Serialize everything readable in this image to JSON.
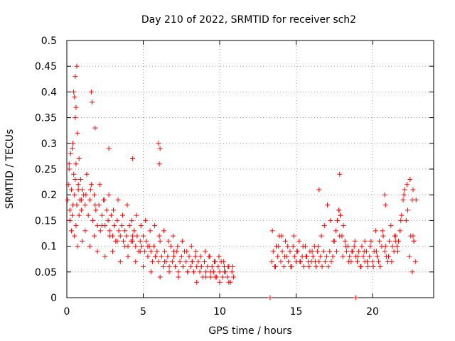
{
  "chart_data": {
    "type": "scatter",
    "title": "Day 210 of 2022, SRMTID for receiver sch2",
    "xlabel": "GPS time / hours",
    "ylabel": "SRMTID / TECUs",
    "xlim": [
      0,
      24
    ],
    "ylim": [
      0,
      0.5
    ],
    "x_ticks": [
      0,
      5,
      10,
      15,
      20
    ],
    "x_tick_labels": [
      "0",
      "5",
      "10",
      "15",
      "20"
    ],
    "y_ticks": [
      0,
      0.05,
      0.1,
      0.15,
      0.2,
      0.25,
      0.3,
      0.35,
      0.4,
      0.45,
      0.5
    ],
    "y_tick_labels": [
      "0",
      "0.05",
      "0.1",
      "0.15",
      "0.2",
      "0.25",
      "0.3",
      "0.35",
      "0.4",
      "0.45",
      "0.5"
    ],
    "grid": true,
    "marker": "plus",
    "color": "#ff0000",
    "series": [
      {
        "name": "SRMTID sch2",
        "x": [
          0.05,
          0.1,
          0.15,
          0.2,
          0.25,
          0.3,
          0.35,
          0.4,
          0.45,
          0.5,
          0.55,
          0.6,
          0.65,
          0.7,
          0.75,
          0.8,
          0.85,
          0.9,
          0.95,
          1.0,
          1.1,
          1.2,
          1.3,
          1.4,
          1.5,
          1.6,
          1.7,
          1.8,
          1.9,
          2.0,
          2.1,
          2.2,
          2.3,
          2.4,
          2.5,
          2.6,
          2.7,
          2.8,
          2.9,
          3.0,
          3.1,
          3.2,
          3.3,
          3.4,
          3.5,
          3.6,
          3.7,
          3.8,
          3.9,
          4.0,
          4.1,
          4.2,
          4.3,
          4.4,
          4.5,
          4.6,
          4.7,
          4.8,
          4.9,
          5.0,
          5.1,
          5.2,
          5.3,
          5.4,
          5.5,
          5.6,
          5.7,
          5.8,
          5.9,
          6.0,
          6.1,
          6.2,
          6.3,
          6.4,
          6.5,
          6.6,
          6.7,
          6.8,
          6.9,
          7.0,
          7.1,
          7.2,
          7.3,
          7.4,
          7.5,
          7.6,
          7.7,
          7.8,
          7.9,
          8.0,
          8.1,
          8.2,
          8.3,
          8.4,
          8.5,
          8.6,
          8.7,
          8.8,
          8.9,
          9.0,
          9.1,
          9.2,
          9.3,
          9.4,
          9.5,
          9.6,
          9.7,
          9.8,
          9.9,
          10.0,
          10.1,
          10.2,
          10.3,
          10.4,
          10.5,
          10.6,
          10.7,
          10.8,
          10.9,
          0.2,
          0.3,
          0.4,
          0.5,
          0.6,
          0.7,
          0.8,
          1.0,
          1.2,
          1.5,
          1.8,
          2.0,
          2.3,
          2.5,
          2.8,
          3.0,
          3.3,
          3.5,
          3.8,
          4.0,
          4.3,
          4.5,
          4.8,
          5.0,
          5.3,
          5.5,
          5.8,
          6.1,
          6.4,
          6.7,
          7.0,
          7.3,
          7.6,
          7.9,
          8.2,
          8.5,
          8.8,
          9.1,
          9.4,
          9.7,
          10.0,
          10.3,
          10.6,
          0.15,
          0.35,
          0.55,
          0.75,
          0.95,
          1.25,
          1.55,
          1.85,
          2.15,
          2.45,
          2.75,
          3.05,
          3.35,
          3.65,
          3.95,
          4.25,
          4.55,
          4.85,
          5.15,
          5.45,
          5.75,
          6.05,
          6.35,
          6.65,
          6.95,
          7.25,
          7.55,
          7.85,
          8.15,
          8.45,
          8.75,
          9.05,
          9.35,
          9.65,
          9.95,
          10.25,
          10.55,
          10.85,
          0.45,
          0.55,
          0.65,
          0.5,
          0.6,
          1.6,
          1.65,
          6.0,
          6.05,
          6.1,
          1.85,
          2.75,
          4.3,
          13.4,
          13.5,
          13.6,
          13.7,
          13.8,
          13.9,
          14.0,
          14.1,
          14.2,
          14.3,
          14.4,
          14.5,
          14.6,
          14.7,
          14.8,
          14.9,
          15.0,
          15.1,
          15.2,
          15.3,
          15.4,
          15.5,
          15.6,
          15.7,
          15.8,
          15.9,
          16.0,
          16.1,
          16.2,
          16.3,
          16.4,
          16.5,
          16.6,
          16.7,
          16.8,
          16.9,
          17.0,
          17.1,
          17.2,
          17.3,
          17.4,
          17.5,
          17.6,
          17.7,
          17.8,
          17.9,
          18.0,
          18.1,
          18.2,
          18.3,
          18.4,
          18.5,
          18.6,
          18.7,
          18.8,
          18.9,
          19.0,
          19.1,
          19.2,
          19.3,
          19.4,
          19.5,
          19.6,
          19.7,
          19.8,
          19.9,
          20.0,
          20.1,
          20.2,
          20.3,
          20.4,
          20.5,
          20.6,
          20.7,
          20.8,
          20.9,
          21.0,
          21.1,
          21.2,
          21.3,
          21.4,
          21.5,
          21.6,
          21.7,
          21.8,
          21.9,
          22.0,
          22.1,
          22.2,
          22.3,
          22.4,
          22.5,
          22.6,
          22.7,
          22.8,
          13.45,
          13.65,
          13.85,
          14.05,
          14.25,
          14.45,
          14.65,
          14.85,
          15.05,
          15.25,
          15.45,
          15.65,
          15.85,
          16.05,
          16.25,
          16.45,
          16.65,
          16.85,
          17.05,
          17.25,
          17.45,
          17.65,
          17.85,
          18.05,
          18.25,
          18.45,
          18.65,
          18.85,
          19.05,
          19.25,
          19.45,
          19.65,
          19.85,
          20.05,
          20.25,
          20.45,
          20.65,
          20.85,
          21.05,
          21.25,
          21.45,
          21.65,
          21.85,
          22.05,
          22.25,
          22.45,
          22.65,
          22.85,
          17.8,
          17.85,
          17.9,
          20.8,
          20.85,
          22.6,
          22.65,
          22.7,
          16.5,
          19.5,
          21.5,
          13.3,
          18.9
        ],
        "y": [
          0.19,
          0.22,
          0.25,
          0.17,
          0.28,
          0.21,
          0.16,
          0.3,
          0.24,
          0.2,
          0.35,
          0.26,
          0.18,
          0.32,
          0.22,
          0.27,
          0.19,
          0.23,
          0.17,
          0.21,
          0.2,
          0.18,
          0.24,
          0.16,
          0.19,
          0.22,
          0.15,
          0.2,
          0.17,
          0.14,
          0.18,
          0.13,
          0.16,
          0.19,
          0.14,
          0.17,
          0.15,
          0.13,
          0.16,
          0.12,
          0.14,
          0.11,
          0.15,
          0.13,
          0.12,
          0.14,
          0.11,
          0.13,
          0.12,
          0.1,
          0.14,
          0.11,
          0.12,
          0.13,
          0.1,
          0.12,
          0.09,
          0.11,
          0.1,
          0.12,
          0.09,
          0.11,
          0.08,
          0.1,
          0.09,
          0.07,
          0.1,
          0.08,
          0.09,
          0.07,
          0.11,
          0.08,
          0.06,
          0.09,
          0.07,
          0.08,
          0.06,
          0.1,
          0.07,
          0.08,
          0.06,
          0.09,
          0.05,
          0.07,
          0.08,
          0.06,
          0.09,
          0.07,
          0.05,
          0.08,
          0.06,
          0.07,
          0.05,
          0.08,
          0.06,
          0.07,
          0.05,
          0.06,
          0.04,
          0.07,
          0.05,
          0.06,
          0.08,
          0.04,
          0.06,
          0.05,
          0.07,
          0.04,
          0.06,
          0.05,
          0.07,
          0.04,
          0.06,
          0.05,
          0.04,
          0.06,
          0.03,
          0.05,
          0.04,
          0.15,
          0.13,
          0.18,
          0.12,
          0.14,
          0.1,
          0.16,
          0.11,
          0.13,
          0.1,
          0.12,
          0.09,
          0.14,
          0.08,
          0.12,
          0.09,
          0.11,
          0.07,
          0.1,
          0.08,
          0.11,
          0.07,
          0.09,
          0.06,
          0.1,
          0.05,
          0.08,
          0.04,
          0.07,
          0.05,
          0.09,
          0.04,
          0.06,
          0.05,
          0.07,
          0.03,
          0.06,
          0.04,
          0.05,
          0.04,
          0.03,
          0.05,
          0.03,
          0.26,
          0.29,
          0.23,
          0.21,
          0.19,
          0.2,
          0.21,
          0.18,
          0.22,
          0.19,
          0.2,
          0.17,
          0.19,
          0.16,
          0.18,
          0.15,
          0.16,
          0.14,
          0.15,
          0.13,
          0.14,
          0.12,
          0.13,
          0.11,
          0.12,
          0.1,
          0.11,
          0.09,
          0.1,
          0.09,
          0.08,
          0.09,
          0.08,
          0.07,
          0.08,
          0.07,
          0.06,
          0.06,
          0.4,
          0.43,
          0.45,
          0.39,
          0.37,
          0.4,
          0.38,
          0.3,
          0.26,
          0.29,
          0.33,
          0.29,
          0.27,
          0.07,
          0.09,
          0.06,
          0.1,
          0.08,
          0.12,
          0.07,
          0.09,
          0.06,
          0.11,
          0.08,
          0.07,
          0.09,
          0.06,
          0.1,
          0.08,
          0.07,
          0.09,
          0.11,
          0.07,
          0.08,
          0.06,
          0.1,
          0.08,
          0.07,
          0.09,
          0.07,
          0.08,
          0.1,
          0.06,
          0.09,
          0.07,
          0.08,
          0.06,
          0.09,
          0.07,
          0.08,
          0.06,
          0.09,
          0.07,
          0.08,
          0.11,
          0.13,
          0.15,
          0.17,
          0.16,
          0.12,
          0.14,
          0.11,
          0.09,
          0.1,
          0.08,
          0.07,
          0.09,
          0.1,
          0.08,
          0.07,
          0.09,
          0.06,
          0.1,
          0.08,
          0.07,
          0.09,
          0.06,
          0.08,
          0.11,
          0.07,
          0.09,
          0.13,
          0.08,
          0.07,
          0.06,
          0.1,
          0.12,
          0.09,
          0.08,
          0.07,
          0.11,
          0.14,
          0.1,
          0.09,
          0.12,
          0.1,
          0.11,
          0.13,
          0.16,
          0.19,
          0.21,
          0.15,
          0.17,
          0.08,
          0.12,
          0.05,
          0.11,
          0.07,
          0.13,
          0.06,
          0.1,
          0.12,
          0.08,
          0.1,
          0.06,
          0.12,
          0.09,
          0.07,
          0.1,
          0.08,
          0.06,
          0.09,
          0.07,
          0.1,
          0.12,
          0.14,
          0.18,
          0.15,
          0.11,
          0.09,
          0.12,
          0.08,
          0.1,
          0.07,
          0.09,
          0.11,
          0.08,
          0.06,
          0.09,
          0.07,
          0.1,
          0.06,
          0.09,
          0.11,
          0.13,
          0.1,
          0.08,
          0.07,
          0.12,
          0.09,
          0.15,
          0.2,
          0.22,
          0.23,
          0.21,
          0.19,
          0.17,
          0.24,
          0.16,
          0.2,
          0.18,
          0.19,
          0.12,
          0.11,
          0.21,
          0.11,
          0.11,
          0.0,
          0.0
        ]
      }
    ]
  }
}
